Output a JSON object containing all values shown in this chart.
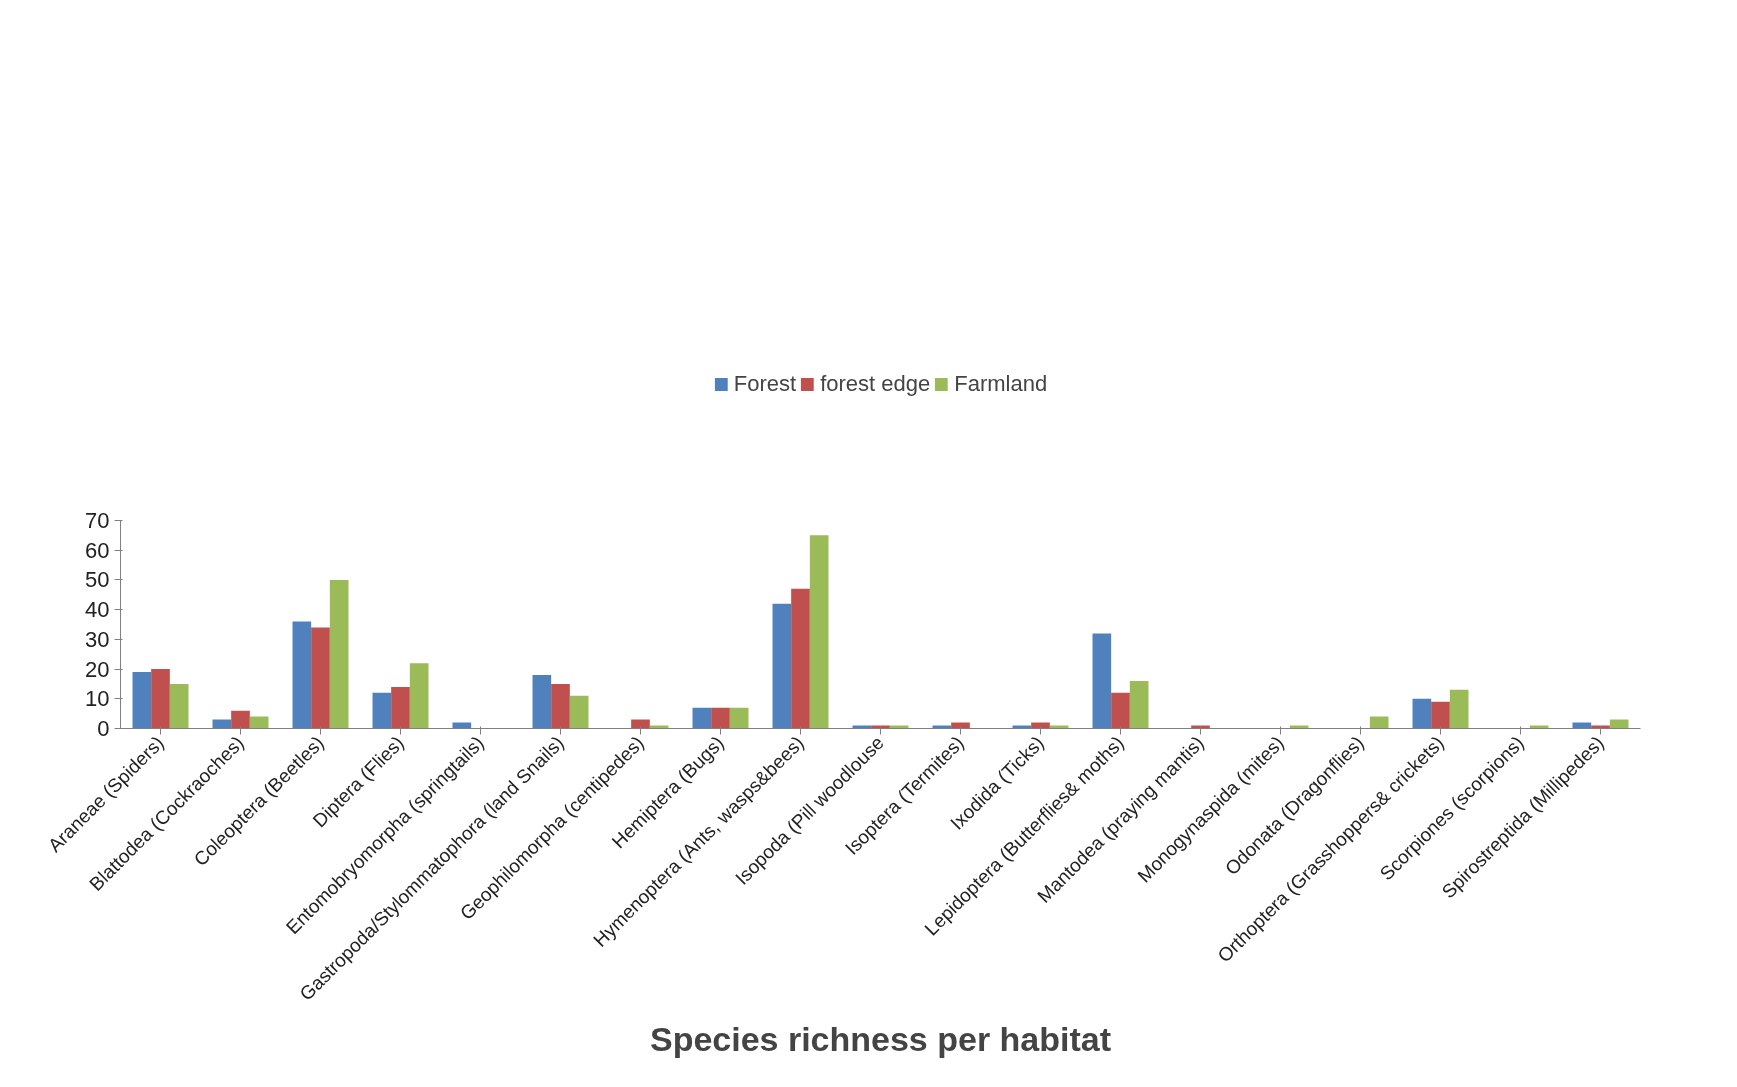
{
  "chart_data": {
    "type": "bar",
    "xlabel": "Species richness per habitat",
    "categories": [
      "Araneae (Spiders)",
      "Blattodea (Cockraoches)",
      "Coleoptera (Beetles)",
      "Diptera (Flies)",
      "Entomobryomorpha (springtails)",
      "Gastropoda/Stylommatophora (land Snails)",
      "Geophilomorpha (centipedes)",
      "Hemiptera (Bugs)",
      "Hymenoptera (Ants, wasps&bees)",
      "Isopoda (Pill woodlouse",
      "Isoptera (Termites)",
      "Ixodida (Ticks)",
      "Lepidoptera (Butterflies& moths)",
      "Mantodea (praying mantis)",
      "Monogynaspida (mites)",
      "Odonata (Dragonflies)",
      "Orthoptera (Grasshoppers& crickets)",
      "Scorpiones (scorpions)",
      "Spirostreptida (Millipedes)"
    ],
    "series": [
      {
        "name": "Forest",
        "color": "#4f81bd",
        "values": [
          19,
          3,
          36,
          12,
          2,
          18,
          0,
          7,
          42,
          1,
          1,
          1,
          32,
          0,
          0,
          0,
          10,
          0,
          2
        ]
      },
      {
        "name": "forest edge",
        "color": "#c0504d",
        "values": [
          20,
          6,
          34,
          14,
          0,
          15,
          3,
          7,
          47,
          1,
          2,
          2,
          12,
          1,
          0,
          0,
          9,
          0,
          1
        ]
      },
      {
        "name": "Farmland",
        "color": "#9bbb59",
        "values": [
          15,
          4,
          50,
          22,
          0,
          11,
          1,
          7,
          65,
          1,
          0,
          1,
          16,
          0,
          1,
          4,
          13,
          1,
          3
        ]
      }
    ],
    "ylim": [
      0,
      70
    ],
    "yticks": [
      0,
      10,
      20,
      30,
      40,
      50,
      60,
      70
    ],
    "grid": false,
    "legend": "top"
  }
}
